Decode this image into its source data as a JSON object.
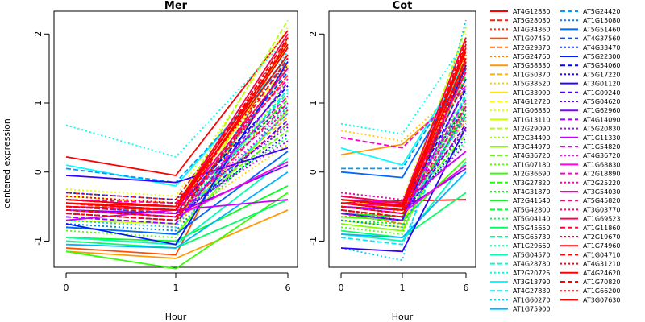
{
  "chart_data": {
    "type": "line",
    "title": "",
    "ylabel": "centered expression",
    "xlabel": "Hour",
    "x": [
      "0",
      "1",
      "6"
    ],
    "ylim": [
      -1.38,
      2.33
    ],
    "y_ticks": [
      -1,
      0,
      1,
      2
    ],
    "grid": false,
    "legend_position": "right",
    "panels": [
      {
        "title": "Mer",
        "xlabel": "Hour"
      },
      {
        "title": "Cot",
        "xlabel": "Hour"
      }
    ],
    "series": [
      {
        "name": "AT4G12830",
        "color": "#ff0000",
        "dash": "solid",
        "mer": [
          0.22,
          -0.05,
          2.05
        ],
        "cot": [
          -0.45,
          -0.42,
          -0.4
        ]
      },
      {
        "name": "AT5G28030",
        "color": "#ff1a00",
        "dash": "dashed",
        "mer": [
          -0.3,
          -0.4,
          1.8
        ],
        "cot": [
          -0.5,
          -0.6,
          1.7
        ]
      },
      {
        "name": "AT4G34360",
        "color": "#ff3300",
        "dash": "dotted",
        "mer": [
          -0.4,
          -0.5,
          1.9
        ],
        "cot": [
          -0.55,
          -0.7,
          1.85
        ]
      },
      {
        "name": "AT1G07450",
        "color": "#ff4d00",
        "dash": "solid",
        "mer": [
          -1.1,
          -1.2,
          1.95
        ],
        "cot": [
          -0.35,
          -0.45,
          1.6
        ]
      },
      {
        "name": "AT2G29370",
        "color": "#ff6600",
        "dash": "dashed",
        "mer": [
          -0.45,
          -0.6,
          1.4
        ],
        "cot": [
          -0.6,
          -0.75,
          1.5
        ]
      },
      {
        "name": "AT5G24760",
        "color": "#ff8000",
        "dash": "dotted",
        "mer": [
          -0.7,
          -0.8,
          1.1
        ],
        "cot": [
          -0.65,
          -0.55,
          1.0
        ]
      },
      {
        "name": "AT5G58330",
        "color": "#ff9900",
        "dash": "solid",
        "mer": [
          -1.15,
          -1.25,
          -0.55
        ],
        "cot": [
          0.25,
          0.4,
          1.2
        ]
      },
      {
        "name": "AT1G50370",
        "color": "#ffb300",
        "dash": "dashed",
        "mer": [
          -0.55,
          -0.65,
          0.8
        ],
        "cot": [
          -0.45,
          -0.5,
          0.75
        ]
      },
      {
        "name": "AT5G38520",
        "color": "#ffcc00",
        "dash": "dotted",
        "mer": [
          -0.6,
          -0.7,
          0.4
        ],
        "cot": [
          0.6,
          0.45,
          1.3
        ]
      },
      {
        "name": "AT1G33990",
        "color": "#ffe600",
        "dash": "solid",
        "mer": [
          -0.5,
          -0.55,
          1.7
        ],
        "cot": [
          -0.5,
          -0.6,
          1.65
        ]
      },
      {
        "name": "AT4G12720",
        "color": "#ffff00",
        "dash": "dashed",
        "mer": [
          -0.35,
          -0.45,
          1.55
        ],
        "cot": [
          -0.4,
          -0.55,
          1.45
        ]
      },
      {
        "name": "AT1G06830",
        "color": "#e6ff00",
        "dash": "dotted",
        "mer": [
          -0.25,
          -0.35,
          2.1
        ],
        "cot": [
          -0.3,
          -0.4,
          2.0
        ]
      },
      {
        "name": "AT1G13110",
        "color": "#ccff00",
        "dash": "solid",
        "mer": [
          -0.7,
          -0.75,
          1.85
        ],
        "cot": [
          -0.7,
          -0.8,
          1.75
        ]
      },
      {
        "name": "AT2G29090",
        "color": "#b3ff00",
        "dash": "dashed",
        "mer": [
          -0.4,
          -0.5,
          2.2
        ],
        "cot": [
          -0.45,
          -0.55,
          2.1
        ]
      },
      {
        "name": "AT2G34490",
        "color": "#99ff00",
        "dash": "dotted",
        "mer": [
          -0.65,
          -0.75,
          1.25
        ],
        "cot": [
          -0.55,
          -0.65,
          1.2
        ]
      },
      {
        "name": "AT3G44970",
        "color": "#80ff00",
        "dash": "solid",
        "mer": [
          -0.8,
          -0.9,
          0.9
        ],
        "cot": [
          -0.75,
          -0.85,
          0.95
        ]
      },
      {
        "name": "AT4G36720",
        "color": "#66ff00",
        "dash": "dashed",
        "mer": [
          -0.55,
          -0.6,
          0.6
        ],
        "cot": [
          -0.5,
          -0.55,
          0.55
        ]
      },
      {
        "name": "AT1G07180",
        "color": "#4dff00",
        "dash": "dotted",
        "mer": [
          -0.85,
          -0.95,
          1.35
        ],
        "cot": [
          -0.8,
          -0.9,
          1.25
        ]
      },
      {
        "name": "AT2G36690",
        "color": "#33ff00",
        "dash": "solid",
        "mer": [
          -1.15,
          -1.4,
          -0.3
        ],
        "cot": [
          -0.65,
          -0.7,
          0.2
        ]
      },
      {
        "name": "AT3G27820",
        "color": "#1aff00",
        "dash": "dashed",
        "mer": [
          -0.45,
          -0.55,
          1.05
        ],
        "cot": [
          -0.4,
          -0.5,
          1.0
        ]
      },
      {
        "name": "AT4G31870",
        "color": "#00ff00",
        "dash": "dotted",
        "mer": [
          -0.75,
          -0.85,
          0.7
        ],
        "cot": [
          -0.7,
          -0.75,
          0.65
        ]
      },
      {
        "name": "AT2G41540",
        "color": "#00ff1a",
        "dash": "solid",
        "mer": [
          -0.95,
          -1.0,
          -0.2
        ],
        "cot": [
          -0.6,
          -0.65,
          0.85
        ]
      },
      {
        "name": "AT5G42800",
        "color": "#00ff33",
        "dash": "dashed",
        "mer": [
          -0.6,
          -0.7,
          1.5
        ],
        "cot": [
          -0.55,
          -0.65,
          1.4
        ]
      },
      {
        "name": "AT5G04140",
        "color": "#00ff4d",
        "dash": "dotted",
        "mer": [
          -0.5,
          -0.6,
          0.5
        ],
        "cot": [
          -0.45,
          -0.55,
          0.45
        ]
      },
      {
        "name": "AT5G45650",
        "color": "#00ff66",
        "dash": "solid",
        "mer": [
          -1.0,
          -1.1,
          -0.4
        ],
        "cot": [
          -0.85,
          -0.95,
          -0.3
        ]
      },
      {
        "name": "AT5G65730",
        "color": "#00ff80",
        "dash": "dashed",
        "mer": [
          -0.55,
          -0.65,
          1.15
        ],
        "cot": [
          -0.5,
          -0.6,
          1.1
        ]
      },
      {
        "name": "AT1G29660",
        "color": "#00ff99",
        "dash": "dotted",
        "mer": [
          -0.4,
          -0.5,
          0.95
        ],
        "cot": [
          -0.35,
          -0.45,
          0.9
        ]
      },
      {
        "name": "AT5G04570",
        "color": "#00ffb3",
        "dash": "solid",
        "mer": [
          -0.95,
          -1.05,
          0.2
        ],
        "cot": [
          -0.9,
          -1.0,
          0.15
        ]
      },
      {
        "name": "AT4G28780",
        "color": "#00ffcc",
        "dash": "dashed",
        "mer": [
          -0.6,
          -0.7,
          0.85
        ],
        "cot": [
          -0.55,
          -0.65,
          0.8
        ]
      },
      {
        "name": "AT2G20725",
        "color": "#00ffe6",
        "dash": "dotted",
        "mer": [
          0.68,
          0.22,
          1.95
        ],
        "cot": [
          0.7,
          0.55,
          1.9
        ]
      },
      {
        "name": "AT3G13790",
        "color": "#00ffff",
        "dash": "solid",
        "mer": [
          0.1,
          -0.2,
          1.65
        ],
        "cot": [
          0.35,
          0.1,
          1.6
        ]
      },
      {
        "name": "AT4G27830",
        "color": "#00e6ff",
        "dash": "dashed",
        "mer": [
          -0.65,
          -0.75,
          1.2
        ],
        "cot": [
          -0.95,
          -1.05,
          1.15
        ]
      },
      {
        "name": "AT1G60270",
        "color": "#00ccff",
        "dash": "dotted",
        "mer": [
          -0.7,
          -0.8,
          1.75
        ],
        "cot": [
          -1.1,
          -1.28,
          2.2
        ]
      },
      {
        "name": "AT1G75900",
        "color": "#00b3ff",
        "dash": "solid",
        "mer": [
          -1.05,
          -1.1,
          0.0
        ],
        "cot": [
          -0.9,
          -0.95,
          0.0
        ]
      },
      {
        "name": "AT5G24420",
        "color": "#0099ff",
        "dash": "dashed",
        "mer": [
          0.05,
          -0.15,
          1.6
        ],
        "cot": [
          0.05,
          0.05,
          1.55
        ]
      },
      {
        "name": "AT1G15080",
        "color": "#0080ff",
        "dash": "dotted",
        "mer": [
          -0.75,
          -0.85,
          0.95
        ],
        "cot": [
          -0.7,
          -0.8,
          0.9
        ]
      },
      {
        "name": "AT5G51460",
        "color": "#0066ff",
        "dash": "solid",
        "mer": [
          -0.8,
          -0.9,
          0.3
        ],
        "cot": [
          0.0,
          -0.08,
          1.5
        ]
      },
      {
        "name": "AT4G37560",
        "color": "#004dff",
        "dash": "dashed",
        "mer": [
          -0.5,
          -0.6,
          1.45
        ],
        "cot": [
          -0.45,
          -0.55,
          1.35
        ]
      },
      {
        "name": "AT4G33470",
        "color": "#0033ff",
        "dash": "dotted",
        "mer": [
          -0.3,
          -0.4,
          1.0
        ],
        "cot": [
          -0.3,
          -0.4,
          0.95
        ]
      },
      {
        "name": "AT5G22300",
        "color": "#001aff",
        "dash": "solid",
        "mer": [
          -0.75,
          -1.05,
          1.6
        ],
        "cot": [
          -0.6,
          -0.7,
          1.55
        ]
      },
      {
        "name": "AT5G54060",
        "color": "#0000ff",
        "dash": "dashed",
        "mer": [
          -0.45,
          -0.55,
          1.25
        ],
        "cot": [
          -0.4,
          -0.5,
          1.2
        ]
      },
      {
        "name": "AT5G17220",
        "color": "#1a00ff",
        "dash": "dotted",
        "mer": [
          -0.55,
          -0.65,
          0.55
        ],
        "cot": [
          -0.5,
          -0.6,
          0.5
        ]
      },
      {
        "name": "AT3G01120",
        "color": "#3300ff",
        "dash": "solid",
        "mer": [
          -0.05,
          -0.15,
          0.35
        ],
        "cot": [
          -1.1,
          -1.15,
          0.65
        ]
      },
      {
        "name": "AT1G09240",
        "color": "#4d00ff",
        "dash": "dashed",
        "mer": [
          -0.6,
          -0.7,
          0.75
        ],
        "cot": [
          -0.55,
          -0.65,
          0.7
        ]
      },
      {
        "name": "AT5G04620",
        "color": "#6600ff",
        "dash": "dotted",
        "mer": [
          -0.4,
          -0.5,
          0.65
        ],
        "cot": [
          -0.35,
          -0.45,
          0.6
        ]
      },
      {
        "name": "AT1G62960",
        "color": "#8000ff",
        "dash": "solid",
        "mer": [
          -0.55,
          -0.6,
          0.1
        ],
        "cot": [
          -0.5,
          -0.55,
          0.05
        ]
      },
      {
        "name": "AT4G14090",
        "color": "#9900ff",
        "dash": "dashed",
        "mer": [
          -0.65,
          -0.75,
          1.3
        ],
        "cot": [
          -0.6,
          -0.7,
          1.25
        ]
      },
      {
        "name": "AT5G20830",
        "color": "#b300ff",
        "dash": "dotted",
        "mer": [
          -0.5,
          -0.6,
          0.45
        ],
        "cot": [
          -0.45,
          -0.55,
          0.4
        ]
      },
      {
        "name": "AT1G11330",
        "color": "#cc00ff",
        "dash": "solid",
        "mer": [
          -0.7,
          -0.55,
          -0.4
        ],
        "cot": [
          -0.4,
          -0.45,
          0.3
        ]
      },
      {
        "name": "AT1G54820",
        "color": "#e600ff",
        "dash": "dashed",
        "mer": [
          -0.45,
          -0.55,
          1.1
        ],
        "cot": [
          -0.4,
          -0.5,
          1.05
        ]
      },
      {
        "name": "AT4G36720",
        "color": "#ff00ff",
        "dash": "dotted",
        "mer": [
          -0.5,
          -0.6,
          0.85
        ],
        "cot": [
          -0.45,
          -0.55,
          0.8
        ]
      },
      {
        "name": "AT1G68830",
        "color": "#ff00e6",
        "dash": "solid",
        "mer": [
          -0.55,
          -0.65,
          0.15
        ],
        "cot": [
          -0.5,
          -0.6,
          0.1
        ]
      },
      {
        "name": "AT2G18890",
        "color": "#ff00cc",
        "dash": "dashed",
        "mer": [
          -0.4,
          -0.45,
          1.35
        ],
        "cot": [
          0.5,
          0.35,
          1.25
        ]
      },
      {
        "name": "AT2G25220",
        "color": "#ff00b3",
        "dash": "dotted",
        "mer": [
          -0.35,
          -0.45,
          0.9
        ],
        "cot": [
          -0.3,
          -0.4,
          0.85
        ]
      },
      {
        "name": "AT3G54030",
        "color": "#ff0099",
        "dash": "solid",
        "mer": [
          -0.5,
          -0.55,
          1.5
        ],
        "cot": [
          -0.45,
          -0.5,
          1.45
        ]
      },
      {
        "name": "AT5G45820",
        "color": "#ff0080",
        "dash": "dashed",
        "mer": [
          -0.55,
          -0.65,
          1.0
        ],
        "cot": [
          -0.5,
          -0.6,
          0.95
        ]
      },
      {
        "name": "AT3G03770",
        "color": "#ff0066",
        "dash": "dotted",
        "mer": [
          -0.45,
          -0.55,
          0.7
        ],
        "cot": [
          -0.4,
          -0.5,
          0.65
        ]
      },
      {
        "name": "AT1G69523",
        "color": "#ff004d",
        "dash": "solid",
        "mer": [
          -0.4,
          -0.5,
          2.0
        ],
        "cot": [
          -0.35,
          -0.45,
          1.95
        ]
      },
      {
        "name": "AT1G11860",
        "color": "#ff0033",
        "dash": "dashed",
        "mer": [
          -0.6,
          -0.7,
          1.65
        ],
        "cot": [
          -0.55,
          -0.65,
          1.6
        ]
      },
      {
        "name": "AT2G19670",
        "color": "#ff001a",
        "dash": "dotted",
        "mer": [
          -0.5,
          -0.6,
          1.4
        ],
        "cot": [
          -0.45,
          -0.55,
          1.35
        ]
      },
      {
        "name": "AT1G74960",
        "color": "#ff0000",
        "dash": "solid",
        "mer": [
          -0.45,
          -0.55,
          1.8
        ],
        "cot": [
          -0.4,
          -0.5,
          1.75
        ]
      },
      {
        "name": "AT1G04710",
        "color": "#ff0000",
        "dash": "dashed",
        "mer": [
          -0.55,
          -0.65,
          1.9
        ],
        "cot": [
          -0.5,
          -0.6,
          1.85
        ]
      },
      {
        "name": "AT4G31210",
        "color": "#ff0000",
        "dash": "dotted",
        "mer": [
          -0.6,
          -0.7,
          1.55
        ],
        "cot": [
          -0.55,
          -0.65,
          1.5
        ]
      },
      {
        "name": "AT4G24620",
        "color": "#ff0000",
        "dash": "solid",
        "mer": [
          -0.4,
          -0.5,
          1.7
        ],
        "cot": [
          -0.45,
          -0.55,
          1.65
        ]
      },
      {
        "name": "AT1G70820",
        "color": "#ff0000",
        "dash": "dashed",
        "mer": [
          -0.5,
          -0.55,
          1.95
        ],
        "cot": [
          -0.45,
          -0.55,
          1.9
        ]
      },
      {
        "name": "AT1G66200",
        "color": "#ff0000",
        "dash": "dotted",
        "mer": [
          -0.35,
          -0.45,
          1.6
        ],
        "cot": [
          -0.4,
          -0.5,
          1.55
        ]
      },
      {
        "name": "AT3G07630",
        "color": "#ff0000",
        "dash": "solid",
        "mer": [
          -0.45,
          -0.5,
          1.85
        ],
        "cot": [
          -0.4,
          -0.48,
          1.8
        ]
      }
    ]
  }
}
